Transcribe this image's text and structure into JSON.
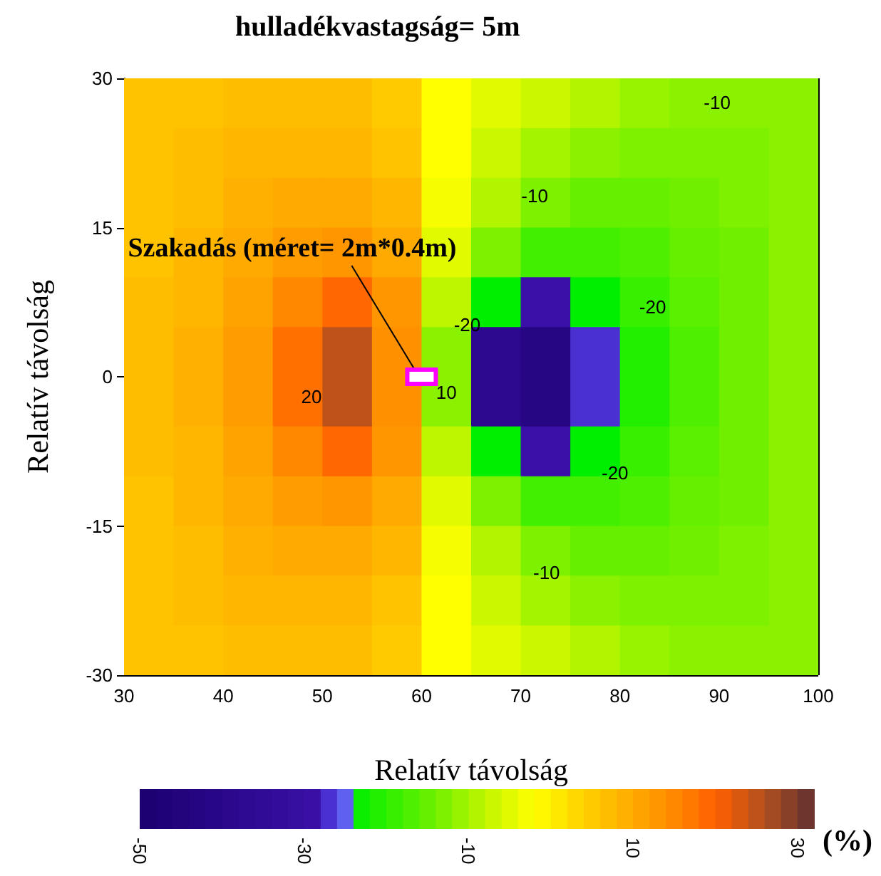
{
  "chart_data": {
    "type": "heatmap",
    "title": "hulladékvastagság= 5m",
    "xlabel": "Relatív távolság",
    "ylabel": "Relatív távolság",
    "clabel": "(%)",
    "x": [
      32.5,
      37.5,
      42.5,
      47.5,
      52.5,
      57.5,
      62.5,
      67.5,
      72.5,
      77.5,
      82.5,
      87.5,
      92.5,
      97.5
    ],
    "y": [
      27.5,
      22.5,
      17.5,
      12.5,
      7.5,
      2.5,
      -2.5,
      -7.5,
      -12.5,
      -17.5,
      -22.5,
      -27.5
    ],
    "xlim": [
      30,
      100
    ],
    "xticks": [
      30,
      40,
      50,
      60,
      70,
      80,
      90,
      100
    ],
    "ylim": [
      -30,
      30
    ],
    "yticks": [
      -30,
      -15,
      0,
      15,
      30
    ],
    "grid": true,
    "clim": [
      -50,
      32
    ],
    "cticks": [
      -50,
      -30,
      -10,
      10,
      30
    ],
    "cells": [
      [
        6,
        6,
        7,
        7,
        7,
        5,
        -2,
        -5,
        -7,
        -9,
        -11,
        -12,
        -12,
        -12
      ],
      [
        6,
        7,
        8,
        8,
        8,
        6,
        -2,
        -7,
        -10,
        -12,
        -13,
        -13,
        -13,
        -12
      ],
      [
        6,
        7,
        9,
        10,
        10,
        8,
        -3,
        -9,
        -13,
        -15,
        -15,
        -14,
        -13,
        -12
      ],
      [
        6,
        8,
        10,
        12,
        13,
        10,
        -5,
        -13,
        -18,
        -18,
        -17,
        -15,
        -14,
        -12
      ],
      [
        7,
        8,
        11,
        15,
        19,
        13,
        -8,
        -24,
        -28,
        -24,
        -19,
        -16,
        -14,
        -12
      ],
      [
        7,
        9,
        12,
        18,
        25,
        14,
        -12,
        -38,
        -42,
        -27,
        -21,
        -17,
        -14,
        -12
      ],
      [
        7,
        9,
        12,
        18,
        25,
        14,
        -12,
        -38,
        -42,
        -27,
        -21,
        -17,
        -14,
        -12
      ],
      [
        7,
        8,
        11,
        15,
        19,
        13,
        -8,
        -24,
        -28,
        -24,
        -19,
        -16,
        -14,
        -12
      ],
      [
        6,
        8,
        10,
        12,
        13,
        10,
        -5,
        -13,
        -18,
        -18,
        -17,
        -15,
        -14,
        -12
      ],
      [
        6,
        7,
        9,
        10,
        10,
        8,
        -3,
        -9,
        -13,
        -15,
        -15,
        -14,
        -13,
        -12
      ],
      [
        6,
        7,
        8,
        8,
        8,
        6,
        -2,
        -7,
        -10,
        -12,
        -13,
        -13,
        -13,
        -12
      ],
      [
        6,
        6,
        7,
        7,
        7,
        5,
        -2,
        -5,
        -7,
        -9,
        -11,
        -12,
        -12,
        -12
      ]
    ],
    "annotations": [
      "Szakadás (méret= 2m*0.4m)",
      "-10",
      "-10",
      "-20",
      "-20",
      "10",
      "20",
      "-20",
      "-10"
    ]
  }
}
